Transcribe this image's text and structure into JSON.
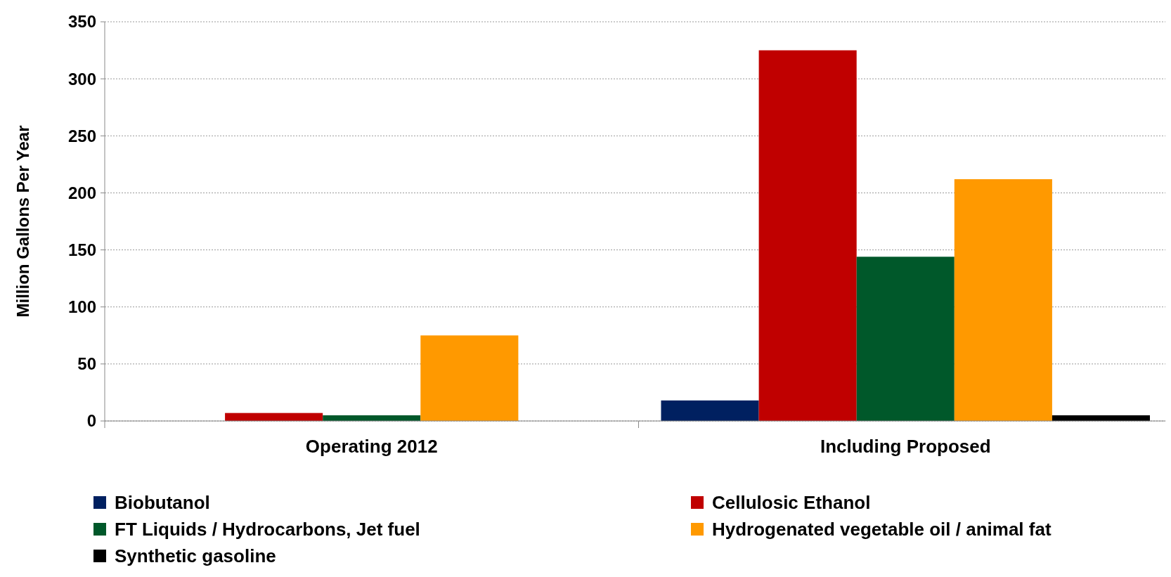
{
  "chart_data": {
    "type": "bar",
    "ylabel": "Million Gallons Per Year",
    "categories": [
      "Operating 2012",
      "Including Proposed"
    ],
    "series": [
      {
        "name": "Biobutanol",
        "color": "#002060",
        "values": [
          0,
          18
        ]
      },
      {
        "name": "Cellulosic Ethanol",
        "color": "#c00000",
        "values": [
          7,
          325
        ]
      },
      {
        "name": "FT Liquids / Hydrocarbons, Jet fuel",
        "color": "#00582a",
        "values": [
          5,
          144
        ]
      },
      {
        "name": "Hydrogenated vegetable oil / animal fat",
        "color": "#ff9900",
        "values": [
          75,
          212
        ]
      },
      {
        "name": "Synthetic gasoline",
        "color": "#000000",
        "values": [
          0,
          5
        ]
      }
    ],
    "ylim": [
      0,
      350
    ],
    "yticks": [
      0,
      50,
      100,
      150,
      200,
      250,
      300,
      350
    ],
    "grid": "y",
    "legend": "bottom"
  }
}
